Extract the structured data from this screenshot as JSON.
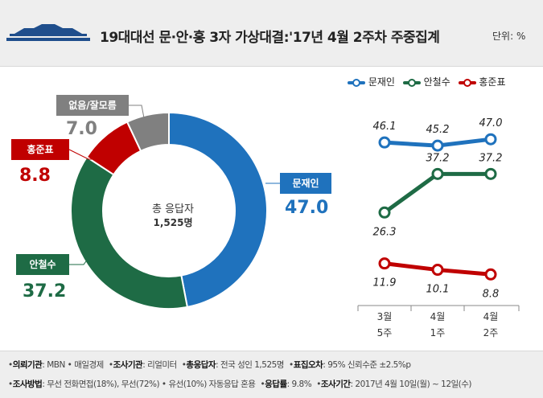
{
  "header": {
    "title": "19대대선 문·안·홍 3자 가상대결:'17년 4월 2주차 주중집계",
    "unit": "단위: %"
  },
  "colors": {
    "moon": "#1f72bd",
    "ahn": "#1e6b45",
    "hong": "#c00000",
    "none": "#808080"
  },
  "chart_data": [
    {
      "type": "pie",
      "variant": "donut",
      "center_label": "총 응답자",
      "center_count": "1,525명",
      "labels": [
        "문재인",
        "안철수",
        "홍준표",
        "없음/잘모름"
      ],
      "values": [
        47.0,
        37.2,
        8.8,
        7.0
      ],
      "value_labels": [
        "47.0",
        "37.2",
        "8.8",
        "7.0"
      ]
    },
    {
      "type": "line",
      "categories": [
        [
          "3월",
          "5주"
        ],
        [
          "4월",
          "1주"
        ],
        [
          "4월",
          "2주"
        ]
      ],
      "series": [
        {
          "name": "문재인",
          "values": [
            46.1,
            45.2,
            47.0
          ],
          "labels": [
            "46.1",
            "45.2",
            "47.0"
          ]
        },
        {
          "name": "안철수",
          "values": [
            26.3,
            37.2,
            37.2
          ],
          "labels": [
            "26.3",
            "37.2",
            "37.2"
          ]
        },
        {
          "name": "홍준표",
          "values": [
            11.9,
            10.1,
            8.8
          ],
          "labels": [
            "11.9",
            "10.1",
            "8.8"
          ]
        }
      ],
      "legend_position": "top"
    }
  ],
  "footer": {
    "line1": [
      {
        "k": "의뢰기관",
        "v": ": MBN • 매일경제"
      },
      {
        "k": "조사기관",
        "v": ": 리얼미터"
      },
      {
        "k": "총응답자",
        "v": ": 전국 성인 1,525명"
      },
      {
        "k": "표집오차",
        "v": ": 95% 신뢰수준 ±2.5%p"
      }
    ],
    "line2": [
      {
        "k": "조사방법",
        "v": ": 무선 전화면접(18%), 무선(72%) • 유선(10%) 자동응답 혼용"
      },
      {
        "k": "응답률",
        "v": ": 9.8%"
      },
      {
        "k": "조사기간",
        "v": ": 2017년 4월 10일(월) ~ 12일(수)"
      }
    ]
  }
}
